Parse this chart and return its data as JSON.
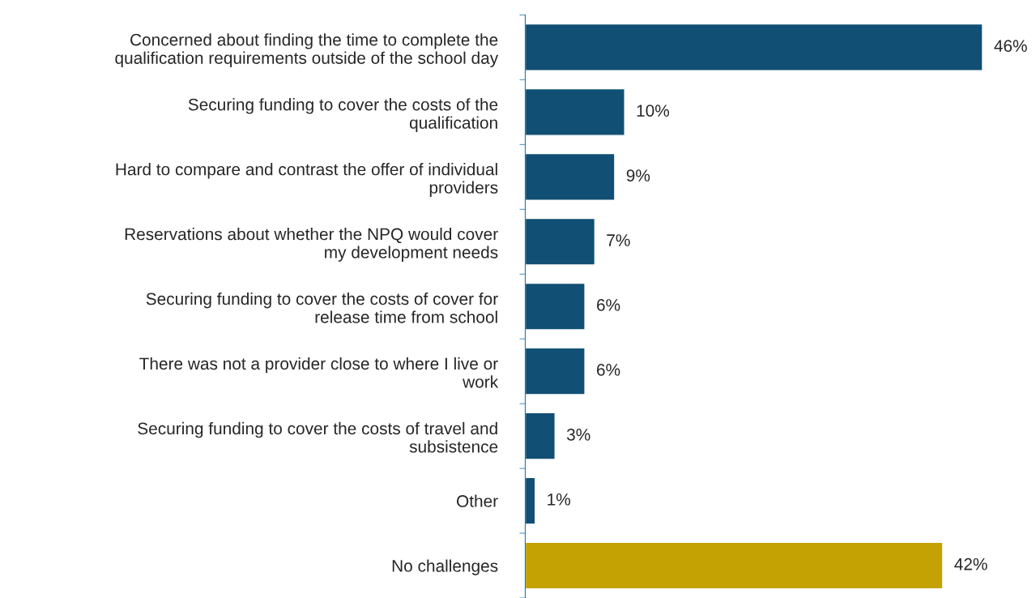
{
  "chart_data": {
    "type": "bar",
    "orientation": "horizontal",
    "categories": [
      "Concerned about finding the time to complete the\nqualification requirements outside of the school day",
      "Securing funding to cover the costs of the\nqualification",
      "Hard to compare and contrast the offer of individual\nproviders",
      "Reservations about whether the NPQ would cover\nmy development needs",
      "Securing funding to cover the costs of cover for\nrelease time from school",
      "There was not a provider close to where I live or\nwork",
      "Securing funding to cover the costs of travel and\nsubsistence",
      "Other",
      "No challenges"
    ],
    "values": [
      46,
      10,
      9,
      7,
      6,
      6,
      3,
      1,
      42
    ],
    "value_labels": [
      "46%",
      "10%",
      "9%",
      "7%",
      "6%",
      "6%",
      "3%",
      "1%",
      "42%"
    ],
    "colors": [
      "#114f74",
      "#114f74",
      "#114f74",
      "#114f74",
      "#114f74",
      "#114f74",
      "#114f74",
      "#114f74",
      "#c4a204"
    ],
    "grid": false,
    "legend": false
  }
}
